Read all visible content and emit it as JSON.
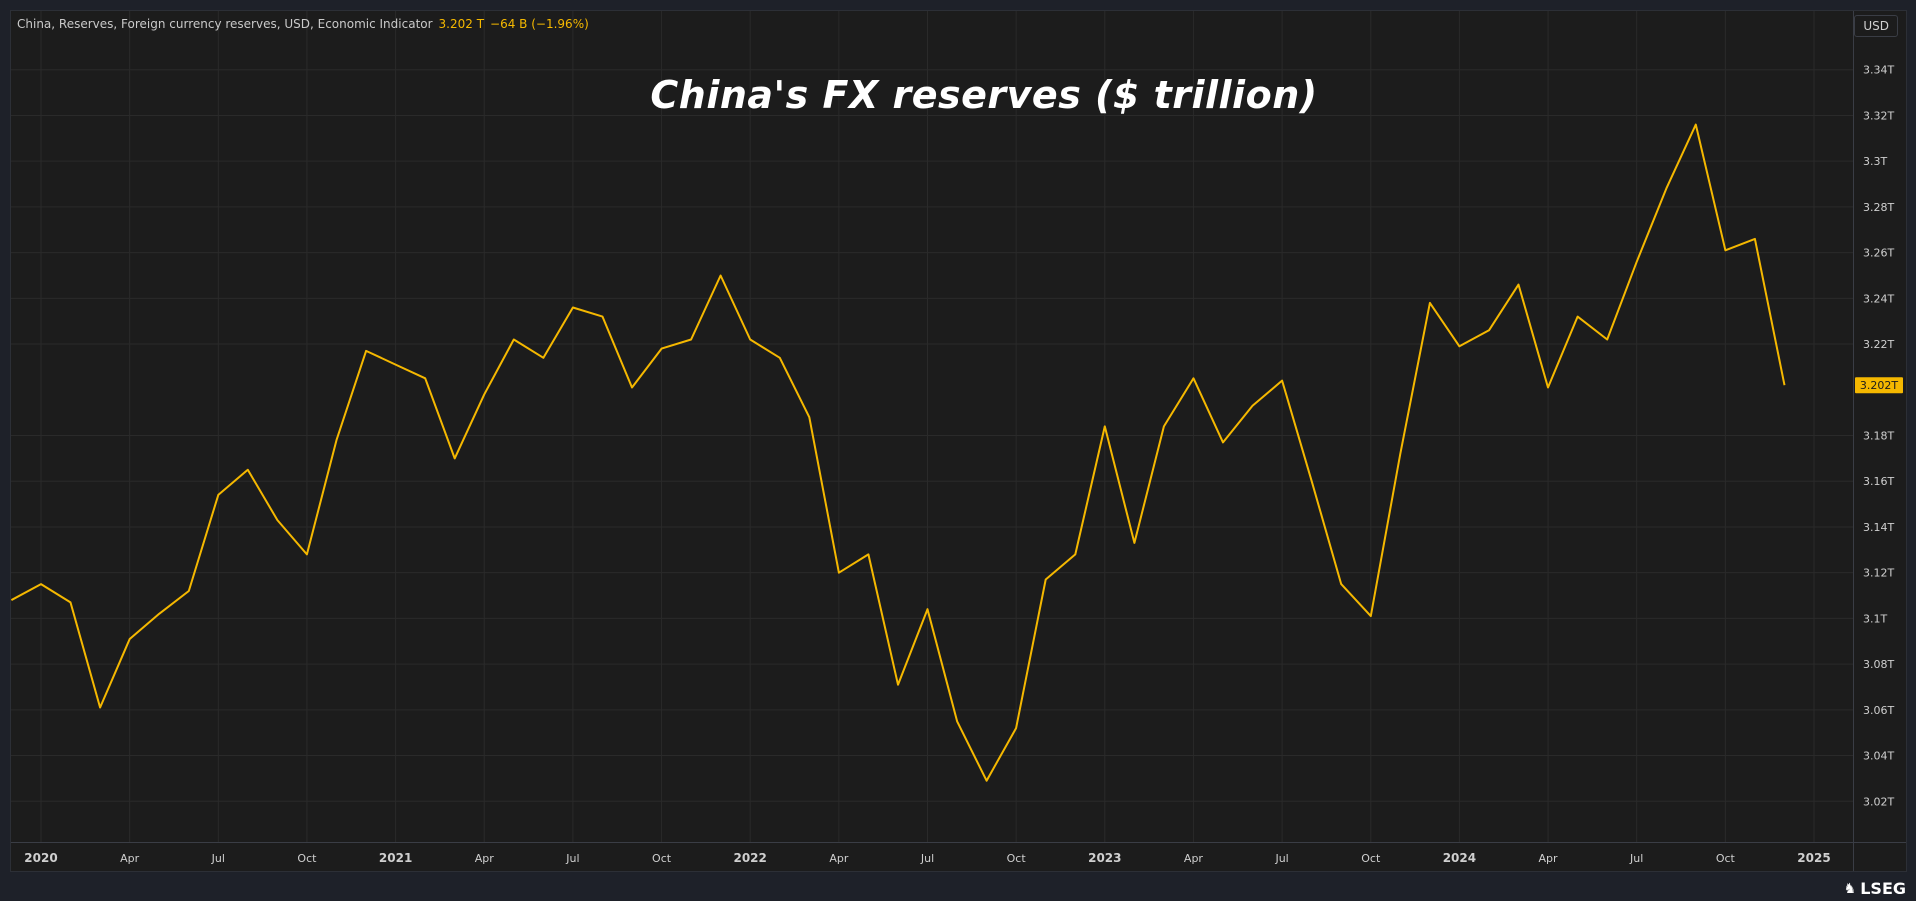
{
  "legend": {
    "series_name": "China, Reserves, Foreign currency reserves, USD, Economic Indicator",
    "last_value": "3.202 T",
    "change": "−64 B (−1.96%)"
  },
  "currency_button": "USD",
  "brand": "LSEG",
  "brand_icon": "lion-emblem-icon",
  "colors": {
    "background": "#1c1c1c",
    "line": "#f5b800",
    "grid": "#2a2a2a",
    "axis_text": "#cfcfcf",
    "price_tag_bg": "#f5b800"
  },
  "chart_data": {
    "type": "line",
    "title": "China's FX reserves ($ trillion)",
    "xlabel": "",
    "ylabel": "",
    "ylim": [
      3.0,
      3.36
    ],
    "yticks": [
      {
        "value": 3.02,
        "label": "3.02T"
      },
      {
        "value": 3.04,
        "label": "3.04T"
      },
      {
        "value": 3.06,
        "label": "3.06T"
      },
      {
        "value": 3.08,
        "label": "3.08T"
      },
      {
        "value": 3.1,
        "label": "3.1T"
      },
      {
        "value": 3.12,
        "label": "3.12T"
      },
      {
        "value": 3.14,
        "label": "3.14T"
      },
      {
        "value": 3.16,
        "label": "3.16T"
      },
      {
        "value": 3.18,
        "label": "3.18T"
      },
      {
        "value": 3.22,
        "label": "3.22T"
      },
      {
        "value": 3.24,
        "label": "3.24T"
      },
      {
        "value": 3.26,
        "label": "3.26T"
      },
      {
        "value": 3.28,
        "label": "3.28T"
      },
      {
        "value": 3.3,
        "label": "3.3T"
      },
      {
        "value": 3.32,
        "label": "3.32T"
      },
      {
        "value": 3.34,
        "label": "3.34T"
      }
    ],
    "last_value_label": "3.202T",
    "xticks": [
      {
        "date": "2020-01",
        "label": "2020",
        "bold": true
      },
      {
        "date": "2020-04",
        "label": "Apr",
        "bold": false
      },
      {
        "date": "2020-07",
        "label": "Jul",
        "bold": false
      },
      {
        "date": "2020-10",
        "label": "Oct",
        "bold": false
      },
      {
        "date": "2021-01",
        "label": "2021",
        "bold": true
      },
      {
        "date": "2021-04",
        "label": "Apr",
        "bold": false
      },
      {
        "date": "2021-07",
        "label": "Jul",
        "bold": false
      },
      {
        "date": "2021-10",
        "label": "Oct",
        "bold": false
      },
      {
        "date": "2022-01",
        "label": "2022",
        "bold": true
      },
      {
        "date": "2022-04",
        "label": "Apr",
        "bold": false
      },
      {
        "date": "2022-07",
        "label": "Jul",
        "bold": false
      },
      {
        "date": "2022-10",
        "label": "Oct",
        "bold": false
      },
      {
        "date": "2023-01",
        "label": "2023",
        "bold": true
      },
      {
        "date": "2023-04",
        "label": "Apr",
        "bold": false
      },
      {
        "date": "2023-07",
        "label": "Jul",
        "bold": false
      },
      {
        "date": "2023-10",
        "label": "Oct",
        "bold": false
      },
      {
        "date": "2024-01",
        "label": "2024",
        "bold": true
      },
      {
        "date": "2024-04",
        "label": "Apr",
        "bold": false
      },
      {
        "date": "2024-07",
        "label": "Jul",
        "bold": false
      },
      {
        "date": "2024-10",
        "label": "Oct",
        "bold": false
      },
      {
        "date": "2025-01",
        "label": "2025",
        "bold": true
      }
    ],
    "xrange": [
      "2019-11",
      "2025-04"
    ],
    "grid": true,
    "series": [
      {
        "x": [
          "2019-12",
          "2020-01",
          "2020-02",
          "2020-03",
          "2020-04",
          "2020-05",
          "2020-06",
          "2020-07",
          "2020-08",
          "2020-09",
          "2020-10",
          "2020-11",
          "2020-12",
          "2021-01",
          "2021-02",
          "2021-03",
          "2021-04",
          "2021-05",
          "2021-06",
          "2021-07",
          "2021-08",
          "2021-09",
          "2021-10",
          "2021-11",
          "2021-12",
          "2022-01",
          "2022-02",
          "2022-03",
          "2022-04",
          "2022-05",
          "2022-06",
          "2022-07",
          "2022-08",
          "2022-09",
          "2022-10",
          "2022-11",
          "2022-12",
          "2023-01",
          "2023-02",
          "2023-03",
          "2023-04",
          "2023-05",
          "2023-06",
          "2023-07",
          "2023-08",
          "2023-09",
          "2023-10",
          "2023-11",
          "2023-12",
          "2024-01",
          "2024-02",
          "2024-03",
          "2024-04",
          "2024-05",
          "2024-06",
          "2024-07",
          "2024-08",
          "2024-09",
          "2024-10",
          "2024-11",
          "2024-12"
        ],
        "values": [
          3.108,
          3.115,
          3.107,
          3.061,
          3.091,
          3.102,
          3.112,
          3.154,
          3.165,
          3.143,
          3.128,
          3.178,
          3.217,
          3.211,
          3.205,
          3.17,
          3.198,
          3.222,
          3.214,
          3.236,
          3.232,
          3.201,
          3.218,
          3.222,
          3.25,
          3.222,
          3.214,
          3.188,
          3.12,
          3.128,
          3.071,
          3.104,
          3.055,
          3.029,
          3.052,
          3.117,
          3.128,
          3.184,
          3.133,
          3.184,
          3.205,
          3.177,
          3.193,
          3.204,
          3.16,
          3.115,
          3.101,
          3.172,
          3.238,
          3.219,
          3.226,
          3.246,
          3.201,
          3.232,
          3.222,
          3.256,
          3.288,
          3.316,
          3.261,
          3.266,
          3.202
        ]
      }
    ]
  }
}
